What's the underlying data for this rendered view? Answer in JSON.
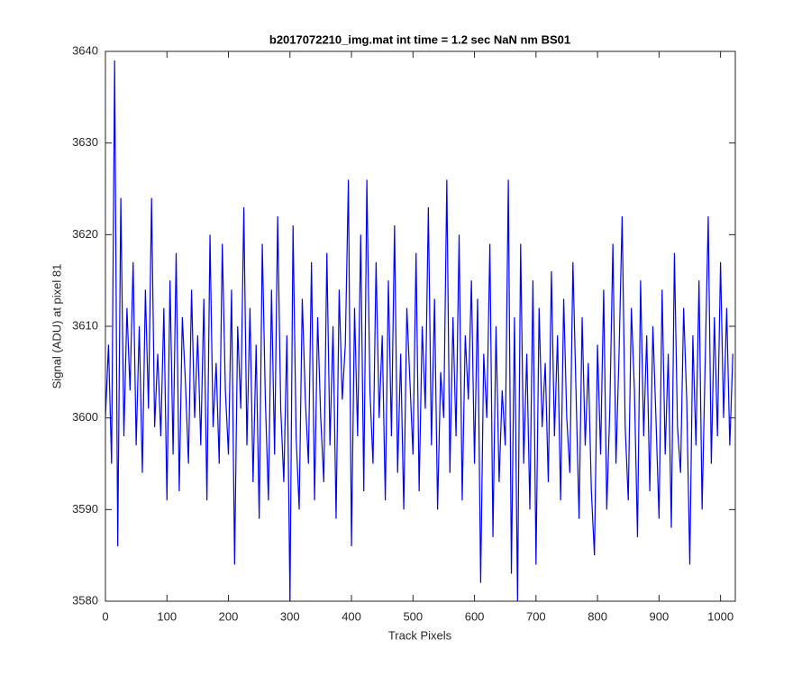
{
  "chart_data": {
    "type": "line",
    "title": "b2017072210_img.mat int time = 1.2 sec  NaN nm BS01",
    "xlabel": "Track Pixels",
    "ylabel": "Signal (ADU) at pixel 81",
    "xlim": [
      0,
      1024
    ],
    "ylim": [
      3580,
      3640
    ],
    "xticks": [
      0,
      100,
      200,
      300,
      400,
      500,
      600,
      700,
      800,
      900,
      1000
    ],
    "yticks": [
      3580,
      3590,
      3600,
      3610,
      3620,
      3630,
      3640
    ],
    "grid": false,
    "x": [
      0,
      5,
      10,
      15,
      20,
      25,
      30,
      35,
      40,
      45,
      50,
      55,
      60,
      65,
      70,
      75,
      80,
      85,
      90,
      95,
      100,
      105,
      110,
      115,
      120,
      125,
      130,
      135,
      140,
      145,
      150,
      155,
      160,
      165,
      170,
      175,
      180,
      185,
      190,
      195,
      200,
      205,
      210,
      215,
      220,
      225,
      230,
      235,
      240,
      245,
      250,
      255,
      260,
      265,
      270,
      275,
      280,
      285,
      290,
      295,
      300,
      305,
      310,
      315,
      320,
      325,
      330,
      335,
      340,
      345,
      350,
      355,
      360,
      365,
      370,
      375,
      380,
      385,
      390,
      395,
      400,
      405,
      410,
      415,
      420,
      425,
      430,
      435,
      440,
      445,
      450,
      455,
      460,
      465,
      470,
      475,
      480,
      485,
      490,
      495,
      500,
      505,
      510,
      515,
      520,
      525,
      530,
      535,
      540,
      545,
      550,
      555,
      560,
      565,
      570,
      575,
      580,
      585,
      590,
      595,
      600,
      605,
      610,
      615,
      620,
      625,
      630,
      635,
      640,
      645,
      650,
      655,
      660,
      665,
      670,
      675,
      680,
      685,
      690,
      695,
      700,
      705,
      710,
      715,
      720,
      725,
      730,
      735,
      740,
      745,
      750,
      755,
      760,
      765,
      770,
      775,
      780,
      785,
      790,
      795,
      800,
      805,
      810,
      815,
      820,
      825,
      830,
      835,
      840,
      845,
      850,
      855,
      860,
      865,
      870,
      875,
      880,
      885,
      890,
      895,
      900,
      905,
      910,
      915,
      920,
      925,
      930,
      935,
      940,
      945,
      950,
      955,
      960,
      965,
      970,
      975,
      980,
      985,
      990,
      995,
      1000,
      1005,
      1010,
      1015,
      1020
    ],
    "series": [
      {
        "color": "#0000ff",
        "values": [
          3600,
          3608,
          3595,
          3639,
          3586,
          3624,
          3598,
          3612,
          3603,
          3617,
          3597,
          3610,
          3594,
          3614,
          3601,
          3624,
          3599,
          3607,
          3598,
          3612,
          3591,
          3615,
          3596,
          3618,
          3592,
          3611,
          3604,
          3595,
          3614,
          3600,
          3609,
          3597,
          3613,
          3591,
          3620,
          3599,
          3606,
          3595,
          3619,
          3603,
          3596,
          3614,
          3584,
          3610,
          3601,
          3623,
          3597,
          3612,
          3593,
          3608,
          3589,
          3619,
          3602,
          3591,
          3614,
          3596,
          3622,
          3601,
          3593,
          3609,
          3580,
          3621,
          3598,
          3590,
          3613,
          3602,
          3595,
          3617,
          3591,
          3611,
          3600,
          3593,
          3618,
          3597,
          3610,
          3589,
          3614,
          3602,
          3608,
          3626,
          3586,
          3612,
          3598,
          3620,
          3592,
          3626,
          3603,
          3595,
          3617,
          3600,
          3609,
          3591,
          3615,
          3598,
          3621,
          3594,
          3607,
          3590,
          3612,
          3604,
          3596,
          3618,
          3592,
          3610,
          3601,
          3623,
          3597,
          3613,
          3590,
          3605,
          3600,
          3626,
          3594,
          3611,
          3598,
          3620,
          3591,
          3609,
          3602,
          3615,
          3595,
          3613,
          3582,
          3607,
          3600,
          3619,
          3587,
          3610,
          3593,
          3603,
          3597,
          3626,
          3583,
          3611,
          3580,
          3619,
          3595,
          3607,
          3590,
          3615,
          3584,
          3612,
          3599,
          3606,
          3593,
          3616,
          3598,
          3609,
          3591,
          3613,
          3600,
          3594,
          3617,
          3603,
          3589,
          3611,
          3597,
          3606,
          3592,
          3585,
          3608,
          3596,
          3614,
          3590,
          3601,
          3619,
          3595,
          3607,
          3622,
          3599,
          3591,
          3612,
          3603,
          3587,
          3615,
          3598,
          3609,
          3592,
          3610,
          3600,
          3589,
          3614,
          3596,
          3607,
          3588,
          3618,
          3599,
          3594,
          3612,
          3602,
          3584,
          3609,
          3597,
          3615,
          3590,
          3606,
          3622,
          3595,
          3611,
          3598,
          3617,
          3600,
          3612,
          3597,
          3607
        ]
      }
    ]
  }
}
